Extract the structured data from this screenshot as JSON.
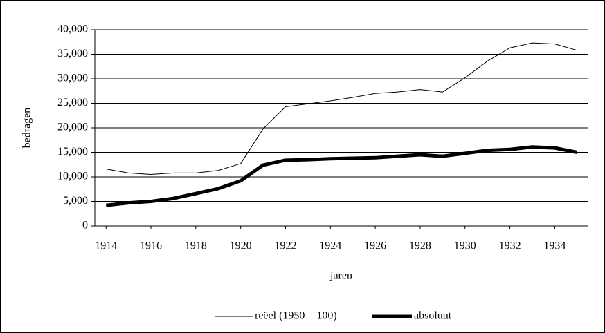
{
  "chart_data": {
    "type": "line",
    "x_label": "jaren",
    "y_label": "bedragen",
    "x": [
      1914,
      1915,
      1916,
      1917,
      1918,
      1919,
      1920,
      1921,
      1922,
      1923,
      1924,
      1925,
      1926,
      1927,
      1928,
      1929,
      1930,
      1931,
      1932,
      1933,
      1934,
      1935
    ],
    "series": [
      {
        "name": "reëel (1950 = 100)",
        "color": "#000000",
        "width": 1,
        "values": [
          11600,
          10800,
          10500,
          10800,
          10800,
          11300,
          12700,
          19800,
          24300,
          24900,
          25500,
          26200,
          27000,
          27300,
          27800,
          27300,
          30200,
          33600,
          36300,
          37300,
          37100,
          35800
        ]
      },
      {
        "name": "absoluut",
        "color": "#000000",
        "width": 5,
        "values": [
          4200,
          4700,
          5000,
          5600,
          6600,
          7600,
          9200,
          12400,
          13400,
          13500,
          13700,
          13800,
          13900,
          14200,
          14500,
          14200,
          14800,
          15400,
          15600,
          16100,
          15900,
          15000
        ]
      }
    ],
    "xlim": [
      1913.5,
      1935.5
    ],
    "xticks": [
      1914,
      1916,
      1918,
      1920,
      1922,
      1924,
      1926,
      1928,
      1930,
      1932,
      1934
    ],
    "ylim": [
      0,
      40000
    ],
    "yticks": [
      0,
      {
        "value": 5000,
        "label": "5,000"
      },
      {
        "value": 10000,
        "label": "10,000"
      },
      {
        "value": 15000,
        "label": "15,000"
      },
      {
        "value": 20000,
        "label": "20,000"
      },
      {
        "value": 25000,
        "label": "25,000"
      },
      {
        "value": 30000,
        "label": "30,000"
      },
      {
        "value": 35000,
        "label": "35,000"
      },
      {
        "value": 40000,
        "label": "40,000"
      }
    ],
    "grid": true,
    "legend": "bottom"
  }
}
